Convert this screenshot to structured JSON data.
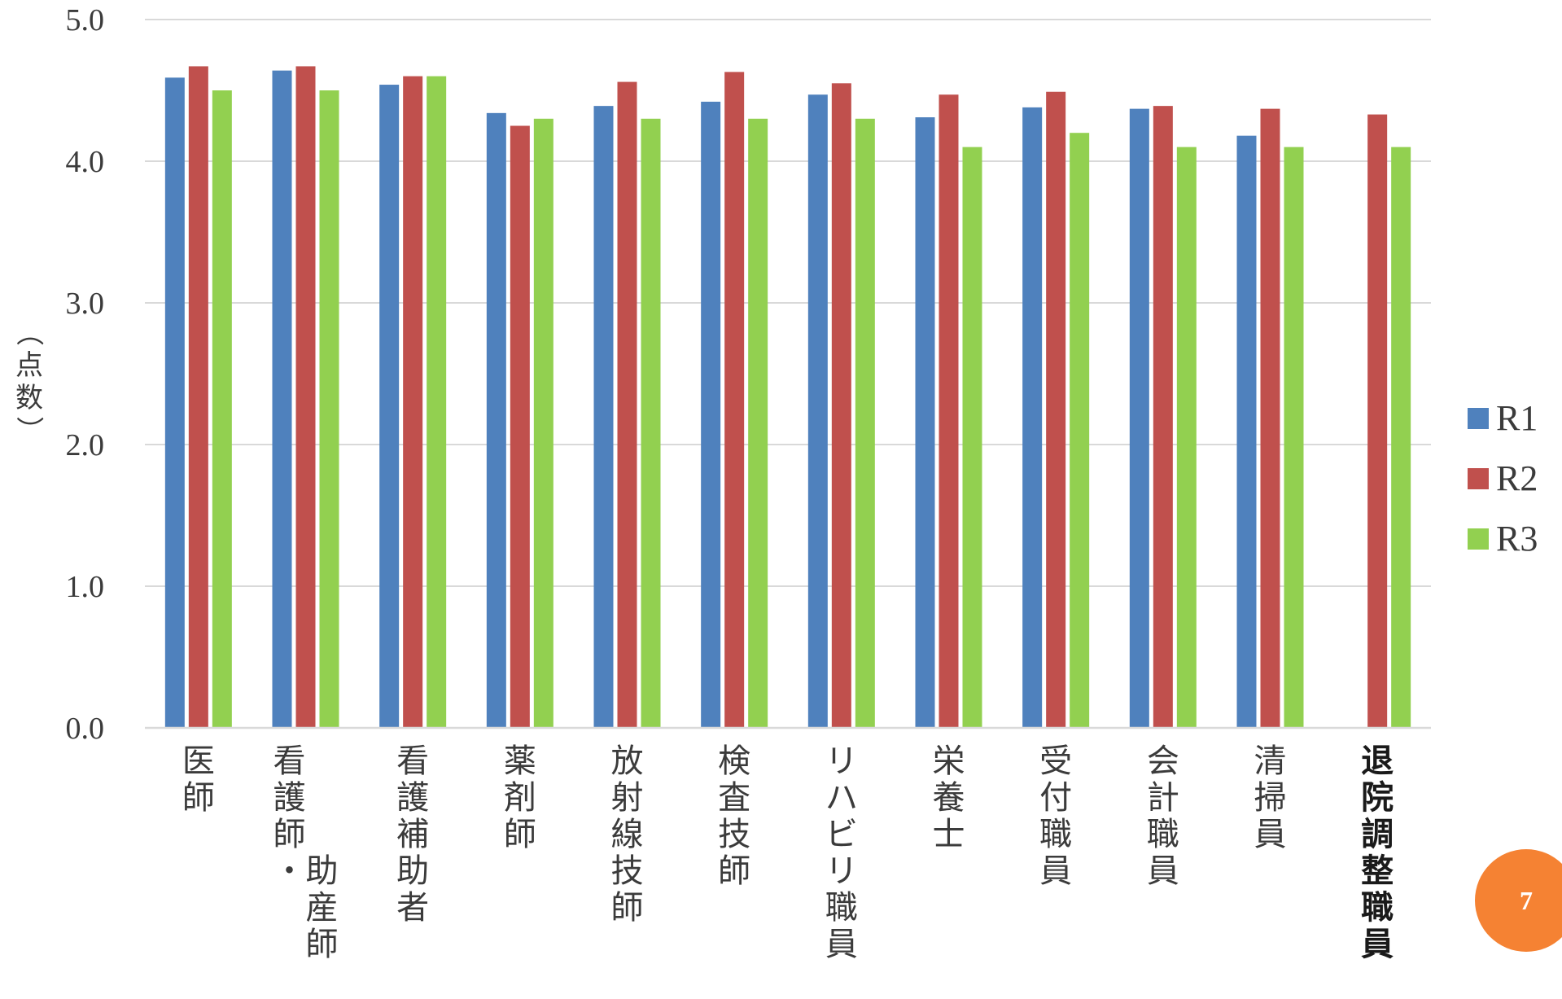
{
  "chart_data": {
    "type": "bar",
    "title": "",
    "ylabel": "（点数）",
    "xlabel": "",
    "ylim": [
      0,
      5
    ],
    "y_ticks": [
      "0.0",
      "1.0",
      "2.0",
      "3.0",
      "4.0",
      "5.0"
    ],
    "grid": true,
    "legend_position": "right",
    "categories": [
      "医師",
      "看護師・助産師",
      "看護補助者",
      "薬剤師",
      "放射線技師",
      "検査技師",
      "リハビリ職員",
      "栄養士",
      "受付職員",
      "会計職員",
      "清掃員",
      "退院調整職員"
    ],
    "category_lines": [
      [
        [
          "医",
          "師"
        ]
      ],
      [
        [
          "看",
          "護",
          "師",
          "・"
        ],
        [
          "",
          "",
          "",
          "助",
          "産",
          "師"
        ]
      ],
      [
        [
          "看",
          "護",
          "補",
          "助",
          "者"
        ]
      ],
      [
        [
          "薬",
          "剤",
          "師"
        ]
      ],
      [
        [
          "放",
          "射",
          "線",
          "技",
          "師"
        ]
      ],
      [
        [
          "検",
          "査",
          "技",
          "師"
        ]
      ],
      [
        [
          "リ",
          "ハ",
          "ビ",
          "リ",
          "職",
          "員"
        ]
      ],
      [
        [
          "栄",
          "養",
          "士"
        ]
      ],
      [
        [
          "受",
          "付",
          "職",
          "員"
        ]
      ],
      [
        [
          "会",
          "計",
          "職",
          "員"
        ]
      ],
      [
        [
          "清",
          "掃",
          "員"
        ]
      ],
      [
        [
          "退",
          "院",
          "調",
          "整",
          "職",
          "員"
        ]
      ]
    ],
    "series": [
      {
        "name": "R1",
        "color": "#4f81bd",
        "values": [
          4.59,
          4.64,
          4.54,
          4.34,
          4.39,
          4.42,
          4.47,
          4.31,
          4.38,
          4.37,
          4.18,
          null
        ]
      },
      {
        "name": "R2",
        "color": "#c0504d",
        "values": [
          4.67,
          4.67,
          4.6,
          4.25,
          4.56,
          4.63,
          4.55,
          4.47,
          4.49,
          4.39,
          4.37,
          4.33
        ]
      },
      {
        "name": "R3",
        "color": "#92d050",
        "values": [
          4.5,
          4.5,
          4.6,
          4.3,
          4.3,
          4.3,
          4.3,
          4.1,
          4.2,
          4.1,
          4.1,
          4.1
        ]
      }
    ]
  },
  "page": {
    "number": "7",
    "badge_color": "#f58233"
  }
}
